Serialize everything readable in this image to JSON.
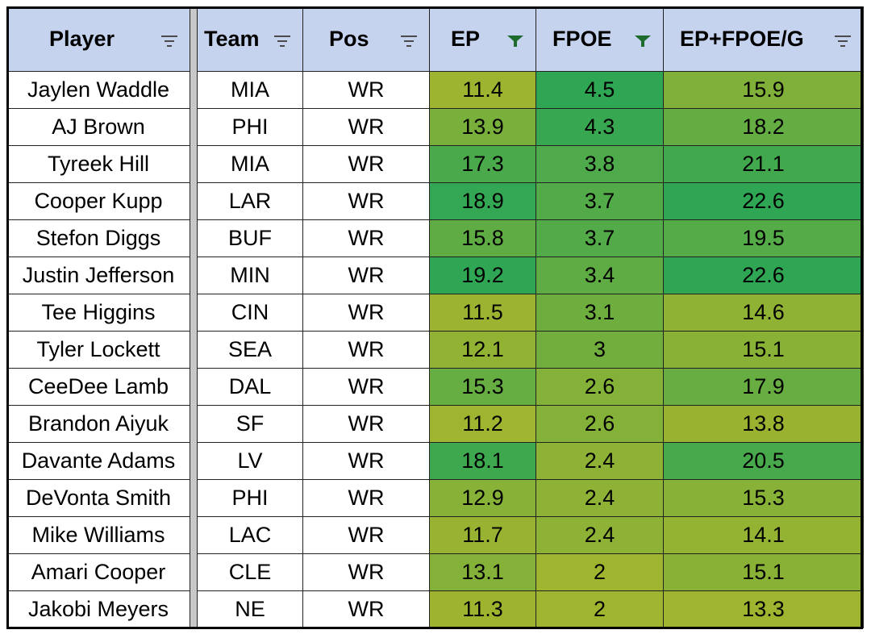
{
  "columns": [
    {
      "key": "player",
      "label": "Player",
      "filter_active": false
    },
    {
      "key": "team",
      "label": "Team",
      "filter_active": false
    },
    {
      "key": "pos",
      "label": "Pos",
      "filter_active": false
    },
    {
      "key": "ep",
      "label": "EP",
      "filter_active": true
    },
    {
      "key": "fpoe",
      "label": "FPOE",
      "filter_active": true
    },
    {
      "key": "epg",
      "label": "EP+FPOE/G",
      "filter_active": false
    }
  ],
  "colors": {
    "header_bg": "#c5d3ee",
    "filter_inactive": "#4a4a4a",
    "filter_active": "#1e6b2e",
    "scale_low": "#9fb42f",
    "scale_high": "#2fa654"
  },
  "rows": [
    {
      "player": "Jaylen Waddle",
      "team": "MIA",
      "pos": "WR",
      "ep": "11.4",
      "fpoe": "4.5",
      "epg": "15.9"
    },
    {
      "player": "AJ Brown",
      "team": "PHI",
      "pos": "WR",
      "ep": "13.9",
      "fpoe": "4.3",
      "epg": "18.2"
    },
    {
      "player": "Tyreek Hill",
      "team": "MIA",
      "pos": "WR",
      "ep": "17.3",
      "fpoe": "3.8",
      "epg": "21.1"
    },
    {
      "player": "Cooper Kupp",
      "team": "LAR",
      "pos": "WR",
      "ep": "18.9",
      "fpoe": "3.7",
      "epg": "22.6"
    },
    {
      "player": "Stefon Diggs",
      "team": "BUF",
      "pos": "WR",
      "ep": "15.8",
      "fpoe": "3.7",
      "epg": "19.5"
    },
    {
      "player": "Justin Jefferson",
      "team": "MIN",
      "pos": "WR",
      "ep": "19.2",
      "fpoe": "3.4",
      "epg": "22.6"
    },
    {
      "player": "Tee Higgins",
      "team": "CIN",
      "pos": "WR",
      "ep": "11.5",
      "fpoe": "3.1",
      "epg": "14.6"
    },
    {
      "player": "Tyler Lockett",
      "team": "SEA",
      "pos": "WR",
      "ep": "12.1",
      "fpoe": "3",
      "epg": "15.1"
    },
    {
      "player": "CeeDee Lamb",
      "team": "DAL",
      "pos": "WR",
      "ep": "15.3",
      "fpoe": "2.6",
      "epg": "17.9"
    },
    {
      "player": "Brandon Aiyuk",
      "team": "SF",
      "pos": "WR",
      "ep": "11.2",
      "fpoe": "2.6",
      "epg": "13.8"
    },
    {
      "player": "Davante Adams",
      "team": "LV",
      "pos": "WR",
      "ep": "18.1",
      "fpoe": "2.4",
      "epg": "20.5"
    },
    {
      "player": "DeVonta Smith",
      "team": "PHI",
      "pos": "WR",
      "ep": "12.9",
      "fpoe": "2.4",
      "epg": "15.3"
    },
    {
      "player": "Mike Williams",
      "team": "LAC",
      "pos": "WR",
      "ep": "11.7",
      "fpoe": "2.4",
      "epg": "14.1"
    },
    {
      "player": "Amari Cooper",
      "team": "CLE",
      "pos": "WR",
      "ep": "13.1",
      "fpoe": "2",
      "epg": "15.1"
    },
    {
      "player": "Jakobi Meyers",
      "team": "NE",
      "pos": "WR",
      "ep": "11.3",
      "fpoe": "2",
      "epg": "13.3"
    }
  ]
}
